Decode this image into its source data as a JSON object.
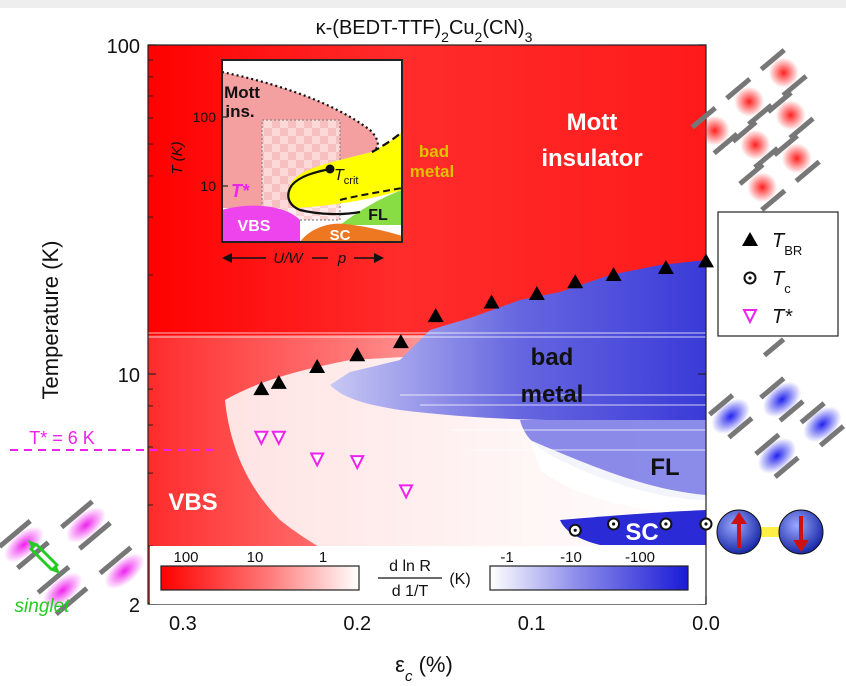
{
  "chart_data": {
    "type": "scatter",
    "title": "κ-(BEDT-TTF)₂Cu₂(CN)₃",
    "xlabel": "εc (%)",
    "ylabel": "Temperature (K)",
    "xlim": [
      0.32,
      0.0
    ],
    "ylim": [
      2,
      100
    ],
    "yscale": "log",
    "x_ticks": [
      "0.3",
      "0.2",
      "0.1",
      "0.0"
    ],
    "y_ticks": [
      "100",
      "10",
      "2"
    ],
    "regions": [
      "Mott insulator",
      "bad metal",
      "FL",
      "SC",
      "VBS"
    ],
    "tstar_label": "T* = 6 K",
    "series": [
      {
        "name": "T_BR",
        "marker": "filled-triangle",
        "x": [
          0.255,
          0.245,
          0.223,
          0.2,
          0.175,
          0.155,
          0.123,
          0.097,
          0.075,
          0.053,
          0.023,
          0.0
        ],
        "y": [
          9.0,
          9.4,
          10.5,
          11.4,
          12.5,
          15.0,
          16.5,
          17.5,
          19.0,
          20.0,
          21.0,
          22.0
        ]
      },
      {
        "name": "T_c",
        "marker": "open-circle-dot",
        "x": [
          0.075,
          0.053,
          0.023,
          0.0
        ],
        "y": [
          3.35,
          3.5,
          3.5,
          3.5
        ]
      },
      {
        "name": "T*",
        "marker": "open-triangle-down",
        "x": [
          0.255,
          0.245,
          0.223,
          0.2,
          0.172
        ],
        "y": [
          6.4,
          6.4,
          5.5,
          5.4,
          4.4
        ]
      }
    ],
    "colorbar": {
      "label_num": "d ln R",
      "label_den": "d 1/T",
      "unit": "(K)",
      "positive_ticks": [
        "100",
        "10",
        "1"
      ],
      "negative_ticks": [
        "-1",
        "-10",
        "-100"
      ]
    },
    "inset": {
      "ylabel": "T (K)",
      "y_ticks": [
        "100",
        "10"
      ],
      "xlabel_left": "U/W",
      "xlabel_right": "p",
      "labels": [
        "Mott ins.",
        "bad metal",
        "FL",
        "SC",
        "VBS",
        "T*"
      ],
      "crit_label_main": "T",
      "crit_label_sub": "crit"
    },
    "side": {
      "singlet_label": "singlet"
    }
  },
  "colors": {
    "red": "#ff0000",
    "blue": "#3333dd",
    "magenta": "#ee22ee",
    "yellow": "#ffff00",
    "green": "#88dd44",
    "orange": "#ee7722",
    "pink": "#f4a0a0",
    "singlet_green": "#22cc22"
  }
}
